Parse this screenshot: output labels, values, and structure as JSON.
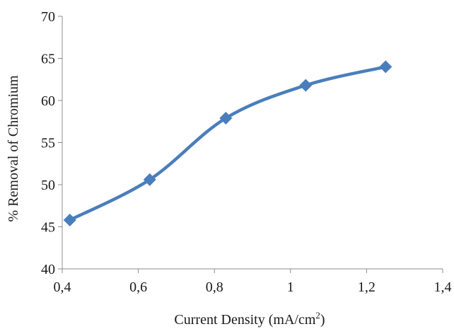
{
  "chart_data": {
    "type": "line",
    "title": "",
    "xlabel": "Current Density (mA/cm",
    "xlabel_sup": "2",
    "xlabel_end": ")",
    "ylabel": "% Removal of Chromium",
    "xlim": [
      0.4,
      1.4
    ],
    "ylim": [
      40,
      70
    ],
    "x_ticks": [
      0.4,
      0.6,
      0.8,
      1.0,
      1.2,
      1.4
    ],
    "x_tick_labels": [
      "0,4",
      "0,6",
      "0,8",
      "1",
      "1,2",
      "1,4"
    ],
    "y_ticks": [
      40,
      45,
      50,
      55,
      60,
      65,
      70
    ],
    "y_tick_labels": [
      "40",
      "45",
      "50",
      "55",
      "60",
      "65",
      "70"
    ],
    "grid": false,
    "legend": "none",
    "series": [
      {
        "x": [
          0.42,
          0.63,
          0.83,
          1.04,
          1.25
        ],
        "values": [
          45.8,
          50.6,
          57.9,
          61.8,
          64.0
        ],
        "color": "#4a7ebb",
        "marker": "diamond",
        "smooth": true
      }
    ]
  }
}
